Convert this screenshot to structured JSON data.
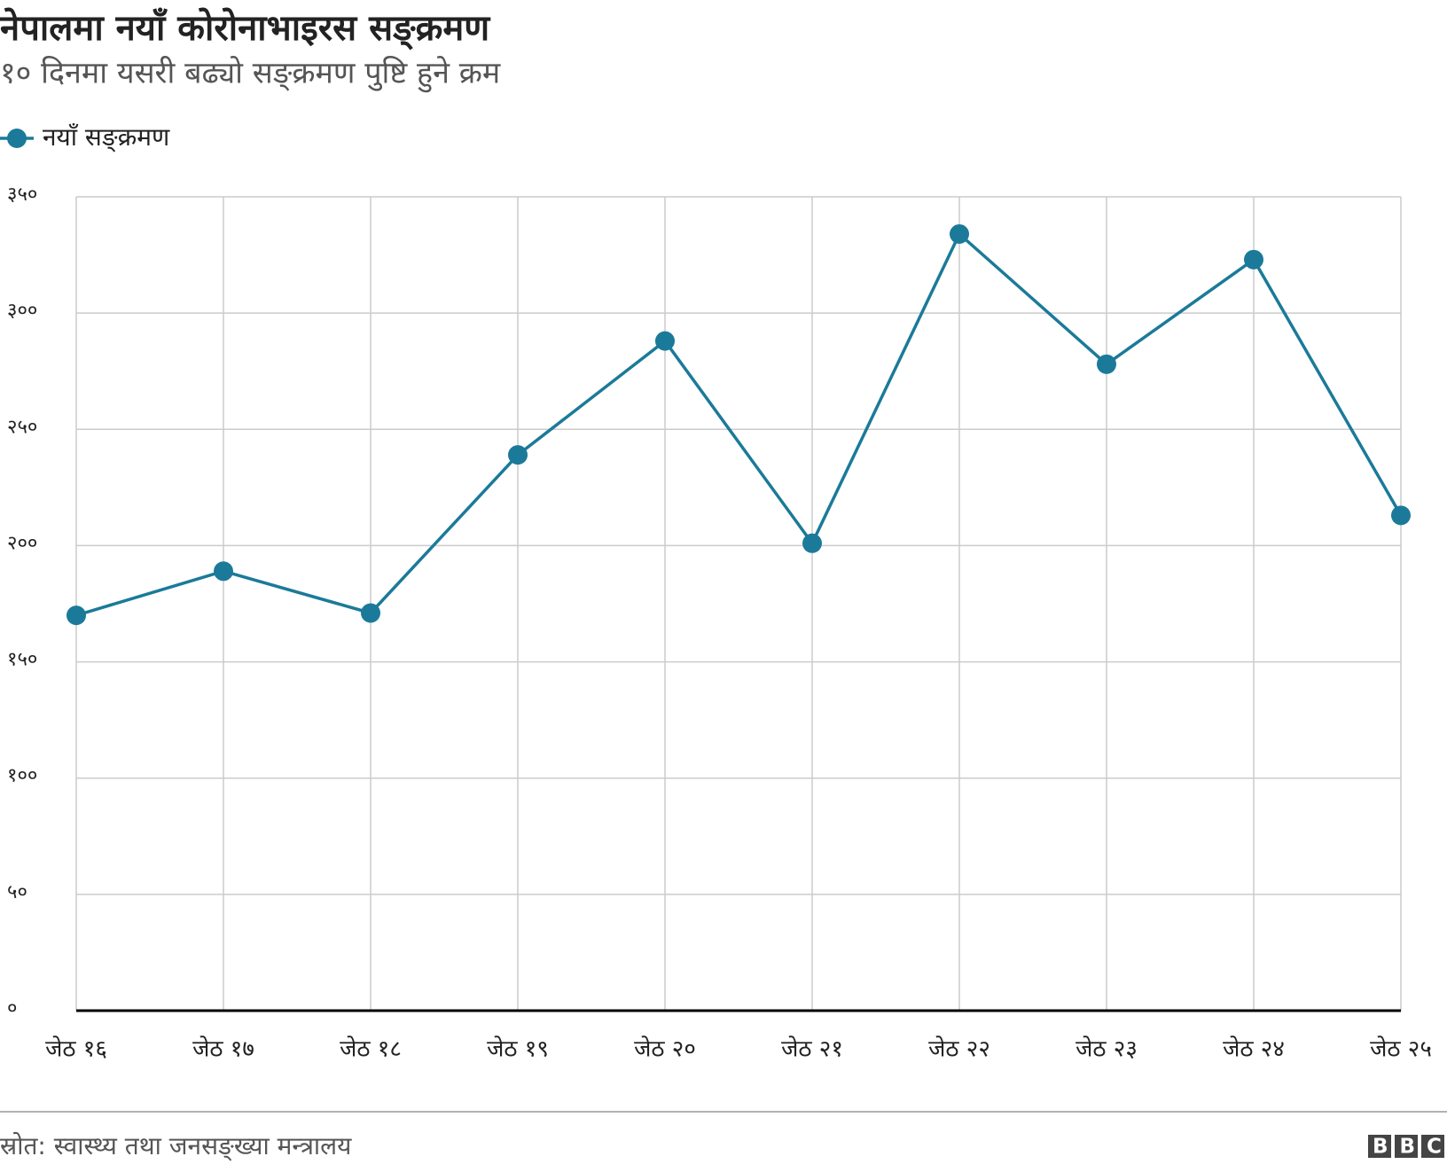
{
  "chart_data": {
    "type": "line",
    "title": "नेपालमा नयाँ कोरोनाभाइरस सङ्क्रमण",
    "subtitle": "१० दिनमा यसरी बढ्यो सङ्क्रमण पुष्टि हुने क्रम",
    "categories": [
      "जेठ १६",
      "जेठ १७",
      "जेठ १८",
      "जेठ १९",
      "जेठ २०",
      "जेठ २१",
      "जेठ २२",
      "जेठ २३",
      "जेठ २४",
      "जेठ २५"
    ],
    "series": [
      {
        "name": "नयाँ सङ्क्रमण",
        "color": "#1b7a99",
        "values": [
          170,
          189,
          171,
          239,
          288,
          201,
          334,
          278,
          323,
          213
        ]
      }
    ],
    "ylim": [
      0,
      350
    ],
    "yticks": [
      {
        "value": 0,
        "label": "०"
      },
      {
        "value": 50,
        "label": "५०"
      },
      {
        "value": 100,
        "label": "१००"
      },
      {
        "value": 150,
        "label": "१५०"
      },
      {
        "value": 200,
        "label": "२००"
      },
      {
        "value": 250,
        "label": "२५०"
      },
      {
        "value": 300,
        "label": "३००"
      },
      {
        "value": 350,
        "label": "३५०"
      }
    ],
    "grid": true,
    "legend": "top-left",
    "source": "स्रोत: स्वास्थ्य तथा जनसङ्ख्या मन्त्रालय",
    "logo": "BBC"
  }
}
